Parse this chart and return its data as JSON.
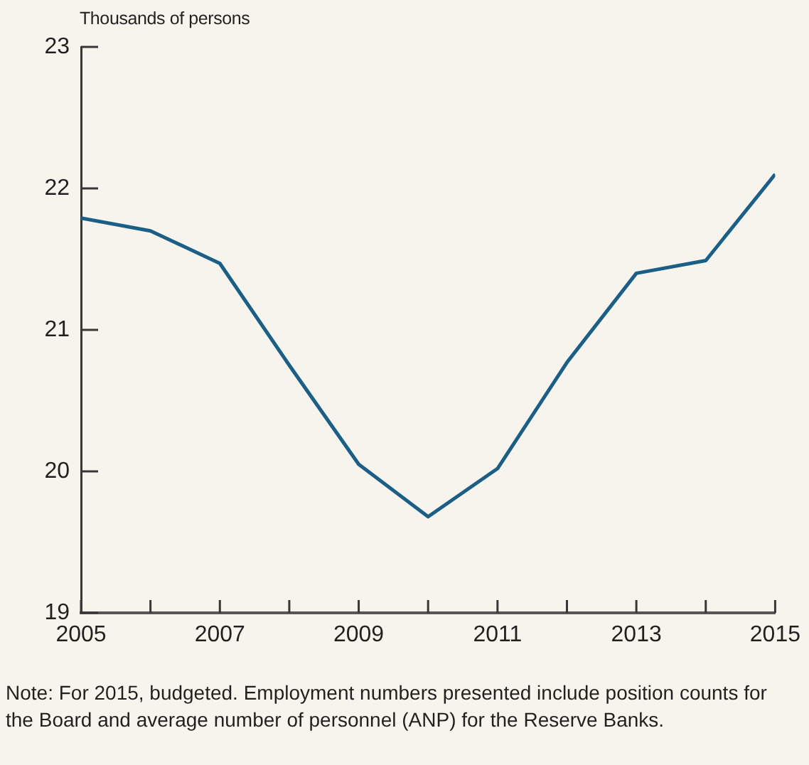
{
  "chart_data": {
    "type": "line",
    "ylabel": "Thousands of persons",
    "x": [
      2005,
      2006,
      2007,
      2008,
      2009,
      2010,
      2011,
      2012,
      2013,
      2014,
      2015
    ],
    "series": [
      {
        "color": "#1b5f86",
        "values": [
          21.79,
          21.7,
          21.47,
          20.75,
          20.05,
          19.68,
          20.02,
          20.77,
          21.4,
          21.49,
          22.1
        ]
      }
    ],
    "xlim": [
      2005,
      2015
    ],
    "xticks": [
      2005,
      {
        "value": 2006,
        "label": null
      },
      2007,
      {
        "value": 2008,
        "label": null
      },
      2009,
      {
        "value": 2010,
        "label": null
      },
      2011,
      {
        "value": 2012,
        "label": null
      },
      2013,
      {
        "value": 2014,
        "label": null
      },
      2015
    ],
    "ylim": [
      19,
      23
    ],
    "yticks": [
      19,
      20,
      21,
      22,
      23
    ],
    "grid": false,
    "legend": false,
    "marker": "none",
    "line_style": "solid",
    "annotations": [
      "Note: For 2015, budgeted. Employment numbers presented include position counts for the Board and average number of personnel (ANP) for the Reserve Banks."
    ]
  }
}
